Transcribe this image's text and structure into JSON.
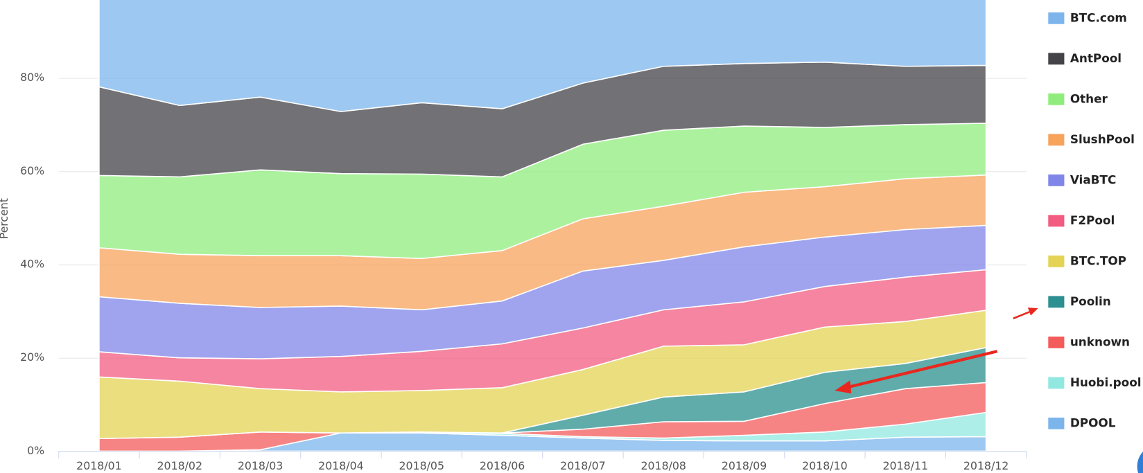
{
  "chart_data": {
    "type": "stacked_area",
    "y_label": "Percent",
    "categories": [
      "2018/01",
      "2018/02",
      "2018/03",
      "2018/04",
      "2018/05",
      "2018/06",
      "2018/07",
      "2018/08",
      "2018/09",
      "2018/10",
      "2018/11",
      "2018/12"
    ],
    "ylim": [
      0,
      100
    ],
    "yticks": [
      {
        "value": 0,
        "label": "0%"
      },
      {
        "value": 20,
        "label": "20%"
      },
      {
        "value": 40,
        "label": "40%"
      },
      {
        "value": 60,
        "label": "60%"
      },
      {
        "value": 80,
        "label": "80%"
      }
    ],
    "grid": true,
    "legend": "right",
    "series": [
      {
        "name": "BTC.com",
        "color": "#7cb5ec",
        "values": [
          21.9,
          25.9,
          24.1,
          27.2,
          25.3,
          26.6,
          21.1,
          17.5,
          16.9,
          16.6,
          17.5,
          17.3
        ]
      },
      {
        "name": "AntPool",
        "color": "#434348",
        "values": [
          19.0,
          15.3,
          15.6,
          13.3,
          15.3,
          14.6,
          13.1,
          13.7,
          13.4,
          14.0,
          12.5,
          12.4
        ]
      },
      {
        "name": "Other",
        "color": "#90ed7d",
        "values": [
          15.5,
          16.6,
          18.4,
          17.6,
          18.1,
          15.8,
          16.0,
          16.3,
          14.2,
          12.7,
          11.6,
          11.1
        ]
      },
      {
        "name": "SlushPool",
        "color": "#f7a35c",
        "values": [
          10.5,
          10.5,
          11.1,
          10.8,
          11.0,
          10.8,
          11.2,
          11.6,
          11.7,
          10.8,
          10.9,
          10.8
        ]
      },
      {
        "name": "ViaBTC",
        "color": "#8085e9",
        "values": [
          11.8,
          11.7,
          11.0,
          10.8,
          8.9,
          9.2,
          12.2,
          10.6,
          11.8,
          10.6,
          10.2,
          9.5
        ]
      },
      {
        "name": "F2Pool",
        "color": "#f15c80",
        "values": [
          5.4,
          5.0,
          6.4,
          7.6,
          8.4,
          9.4,
          8.9,
          7.8,
          9.2,
          8.7,
          9.5,
          8.7
        ]
      },
      {
        "name": "BTC.TOP",
        "color": "#e4d354",
        "values": [
          13.2,
          12.0,
          9.3,
          8.8,
          8.9,
          9.7,
          9.8,
          10.9,
          10.1,
          9.7,
          9.0,
          8.0
        ]
      },
      {
        "name": "Poolin",
        "color": "#2b908f",
        "values": [
          0,
          0,
          0,
          0,
          0,
          0,
          3.0,
          5.3,
          6.3,
          6.7,
          5.4,
          7.5
        ]
      },
      {
        "name": "unknown",
        "color": "#f45b5b",
        "values": [
          2.7,
          3.0,
          3.8,
          0,
          0,
          0.1,
          1.6,
          3.5,
          3.0,
          6.1,
          7.6,
          6.4
        ]
      },
      {
        "name": "Huobi.pool",
        "color": "#91e8e1",
        "values": [
          0,
          0,
          0,
          0,
          0.2,
          0.4,
          0.3,
          0.5,
          1.2,
          1.9,
          2.8,
          5.2
        ]
      },
      {
        "name": "DPOOL",
        "color": "#7cb5ec",
        "values": [
          0,
          0,
          0.3,
          3.9,
          3.9,
          3.4,
          2.8,
          2.3,
          2.2,
          2.2,
          3.0,
          3.1
        ]
      }
    ]
  }
}
